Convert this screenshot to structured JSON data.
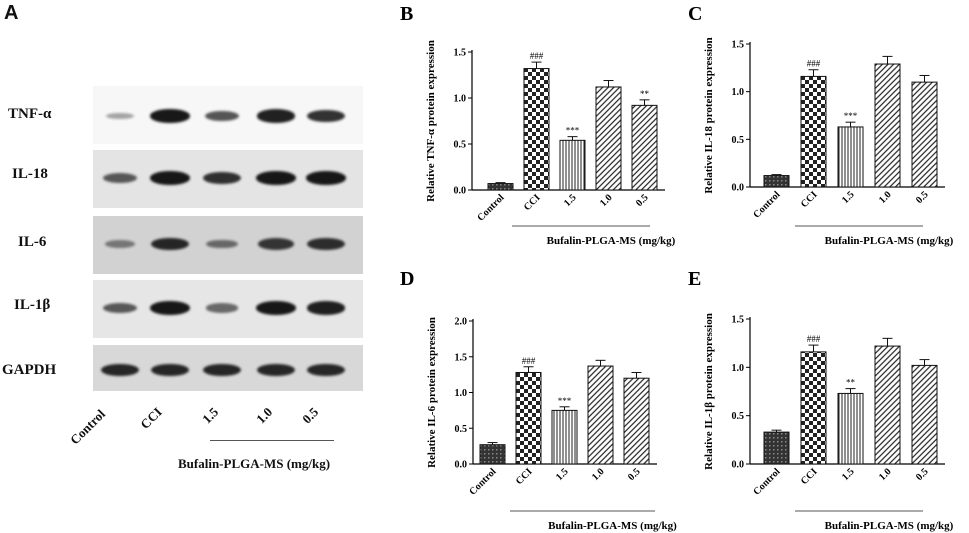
{
  "panelA": {
    "letter": "A",
    "proteins": [
      "TNF-α",
      "IL-18",
      "IL-6",
      "IL-1β",
      "GAPDH"
    ],
    "lanes": [
      "Control",
      "CCI",
      "1.5",
      "1.0",
      "0.5"
    ],
    "group_label": "Bufalin-PLGA-MS (mg/kg)",
    "band_intensities": [
      [
        0.15,
        0.95,
        0.6,
        0.9,
        0.8
      ],
      [
        0.55,
        0.95,
        0.8,
        0.95,
        0.95
      ],
      [
        0.3,
        0.85,
        0.4,
        0.75,
        0.8
      ],
      [
        0.55,
        0.95,
        0.45,
        0.95,
        0.9
      ],
      [
        0.85,
        0.85,
        0.85,
        0.85,
        0.85
      ]
    ]
  },
  "chart_data": [
    {
      "panel": "B",
      "type": "bar",
      "categories": [
        "Control",
        "CCI",
        "1.5",
        "1.0",
        "0.5"
      ],
      "values": [
        0.07,
        1.32,
        0.54,
        1.12,
        0.92
      ],
      "errors": [
        0.01,
        0.07,
        0.04,
        0.07,
        0.06
      ],
      "annotations": [
        "",
        "###",
        "***",
        "",
        "**"
      ],
      "ylabel": "Relative TNF-α protein expression",
      "group_label": "Bufalin-PLGA-MS (mg/kg)",
      "ylim": [
        0,
        1.5
      ],
      "yticks": [
        "0.0",
        "0.5",
        "1.0",
        "1.5"
      ]
    },
    {
      "panel": "C",
      "type": "bar",
      "categories": [
        "Control",
        "CCI",
        "1.5",
        "1.0",
        "0.5"
      ],
      "values": [
        0.12,
        1.16,
        0.63,
        1.29,
        1.1
      ],
      "errors": [
        0.01,
        0.07,
        0.05,
        0.08,
        0.07
      ],
      "annotations": [
        "",
        "###",
        "***",
        "",
        ""
      ],
      "ylabel": "Relative IL-18 protein expression",
      "group_label": "Bufalin-PLGA-MS (mg/kg)",
      "ylim": [
        0,
        1.5
      ],
      "yticks": [
        "0.0",
        "0.5",
        "1.0",
        "1.5"
      ]
    },
    {
      "panel": "D",
      "type": "bar",
      "categories": [
        "Control",
        "CCI",
        "1.5",
        "1.0",
        "0.5"
      ],
      "values": [
        0.27,
        1.28,
        0.75,
        1.37,
        1.2
      ],
      "errors": [
        0.03,
        0.08,
        0.05,
        0.08,
        0.08
      ],
      "annotations": [
        "",
        "###",
        "***",
        "",
        ""
      ],
      "ylabel": "Relative IL-6 protein expression",
      "group_label": "Bufalin-PLGA-MS (mg/kg)",
      "ylim": [
        0,
        2.0
      ],
      "yticks": [
        "0.0",
        "0.5",
        "1.0",
        "1.5",
        "2.0"
      ]
    },
    {
      "panel": "E",
      "type": "bar",
      "categories": [
        "Control",
        "CCI",
        "1.5",
        "1.0",
        "0.5"
      ],
      "values": [
        0.33,
        1.16,
        0.73,
        1.22,
        1.02
      ],
      "errors": [
        0.02,
        0.07,
        0.05,
        0.08,
        0.06
      ],
      "annotations": [
        "",
        "###",
        "**",
        "",
        ""
      ],
      "ylabel": "Relative IL-1β protein expression",
      "group_label": "Bufalin-PLGA-MS (mg/kg)",
      "ylim": [
        0,
        1.5
      ],
      "yticks": [
        "0.0",
        "0.5",
        "1.0",
        "1.5"
      ]
    }
  ]
}
